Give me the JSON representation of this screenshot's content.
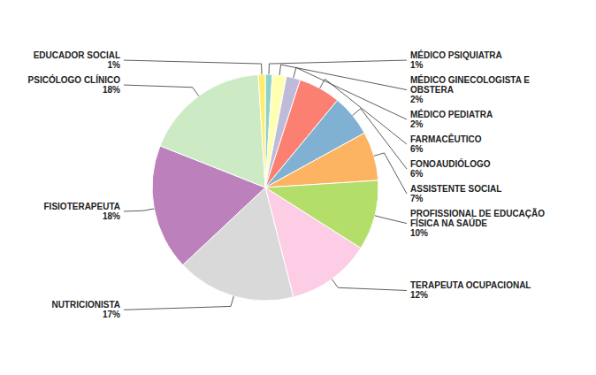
{
  "chart_data": {
    "type": "pie",
    "categories": [
      "MÉDICO PSIQUIATRA",
      "MÉDICO GINECOLOGISTA E\nOBSTERA",
      "MÉDICO PEDIATRA",
      "FARMACÊUTICO",
      "FONOAUDIÓLOGO",
      "ASSISTENTE SOCIAL",
      "PROFISSIONAL DE EDUCAÇÃO\nFÍSICA NA SAÚDE",
      "TERAPEUTA OCUPACIONAL",
      "NUTRICIONISTA",
      "FISIOTERAPEUTA",
      "PSICÓLOGO CLÍNICO",
      "EDUCADOR SOCIAL"
    ],
    "values": [
      1,
      2,
      2,
      6,
      6,
      7,
      10,
      12,
      17,
      18,
      18,
      1
    ],
    "value_labels": [
      "1%",
      "2%",
      "2%",
      "6%",
      "6%",
      "7%",
      "10%",
      "12%",
      "17%",
      "18%",
      "18%",
      "1%"
    ]
  }
}
